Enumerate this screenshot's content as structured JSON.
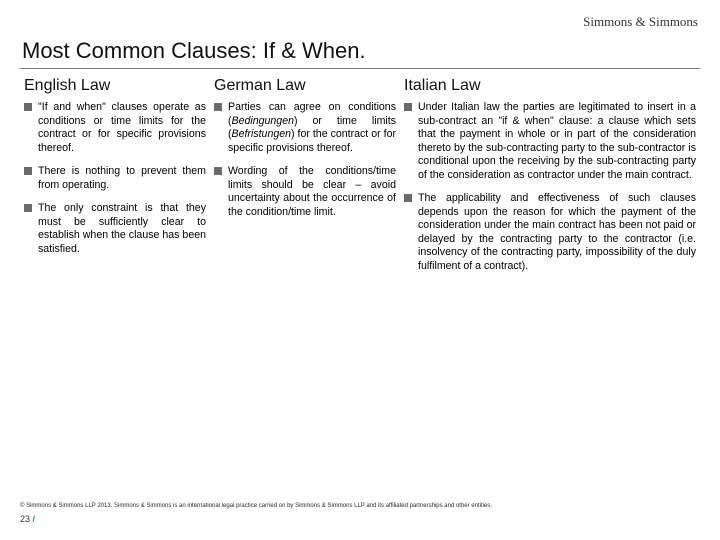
{
  "brand": "Simmons & Simmons",
  "title": "Most Common Clauses: If & When.",
  "columns": {
    "english": {
      "heading": "English Law",
      "items": [
        "\"If and when\" clauses operate as conditions or time limits for the contract or for specific provisions thereof.",
        "There is nothing to prevent them from operating.",
        "The only constraint is that they must be sufficiently clear to establish when the clause has been satisfied."
      ]
    },
    "german": {
      "heading": "German Law",
      "items_html": [
        "Parties can agree on conditions (<span class=\"em\">Bedingungen</span>) or time limits (<span class=\"em\">Befristungen</span>) for the contract or for specific provisions thereof.",
        "Wording of the conditions/time limits should be clear – avoid uncertainty about the occurrence of the condition/time limit."
      ]
    },
    "italian": {
      "heading": "Italian Law",
      "items": [
        "Under Italian law the parties are legitimated to insert in a sub-contract an \"if & when\" clause: a clause which sets that the payment in whole or in part of the consideration thereto by the sub-contracting party to the sub-contractor is conditional upon the receiving by the sub-contracting party of the consideration as contractor under the main contract.",
        "The applicability and effectiveness of such clauses depends upon the reason for which the payment of the consideration under the main contract has been not paid or delayed by the contracting party to the contractor (i.e. insolvency of the contracting party, impossibility of the duly fulfilment of a contract)."
      ]
    }
  },
  "footer": {
    "copyright": "© Simmons & Simmons LLP 2013. Simmons & Simmons is an international legal practice carried on by Simmons & Simmons LLP and its affiliated partnerships and other entities.",
    "page_number": "23",
    "bar": "/"
  },
  "colors": {
    "bullet": "#6b6b6b",
    "title": "#111111",
    "accent": "#2a8b8b",
    "text": "#000000",
    "rule": "#777777"
  }
}
